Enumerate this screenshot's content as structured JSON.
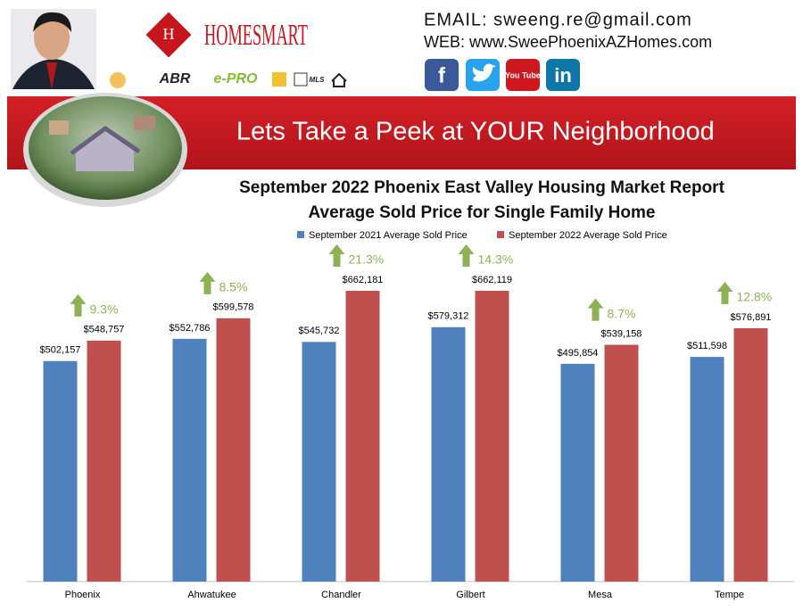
{
  "header": {
    "logo": "HOMESMART",
    "email": "EMAIL: sweeng.re@gmail.com",
    "web": "WEB: www.SweePhoenixAZHomes.com",
    "badges": [
      "ABR",
      "e-PRO",
      "MLS"
    ],
    "social": [
      "f",
      "You Tube",
      "in"
    ],
    "banner": "Lets Take a Peek at YOUR Neighborhood"
  },
  "chart_data": {
    "type": "bar",
    "title": "September 2022 Phoenix East Valley Housing Market Report",
    "subtitle": "Average Sold Price for Single Family Home",
    "categories": [
      "Phoenix",
      "Ahwatukee",
      "Chandler",
      "Gilbert",
      "Mesa",
      "Tempe"
    ],
    "series": [
      {
        "name": "September 2021 Average Sold Price",
        "color": "#4f81bd",
        "values": [
          502157,
          552786,
          545732,
          579312,
          495854,
          511598
        ],
        "value_labels": [
          "$502,157",
          "$552,786",
          "$545,732",
          "$579,312",
          "$495,854",
          "$511,598"
        ]
      },
      {
        "name": "September 2022 Average Sold Price",
        "color": "#c0504d",
        "values": [
          548757,
          599578,
          662181,
          662119,
          539158,
          576891
        ],
        "value_labels": [
          "$548,757",
          "$599,578",
          "$662,181",
          "$662,119",
          "$539,158",
          "$576,891"
        ]
      }
    ],
    "annotations": [
      "9.3%",
      "8.5%",
      "21.3%",
      "14.3%",
      "8.7%",
      "12.8%"
    ],
    "annotation_color": "#8db255",
    "legend": "top"
  }
}
